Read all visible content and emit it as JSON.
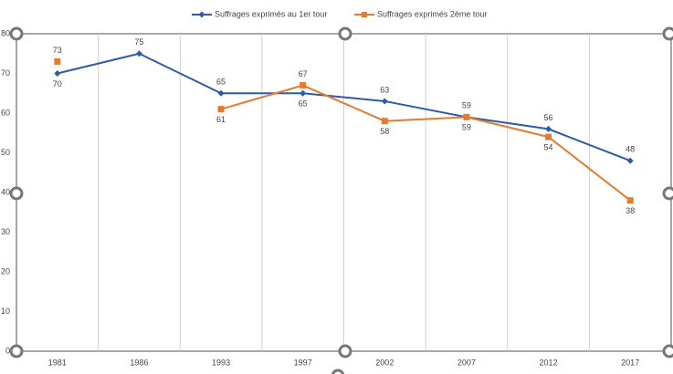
{
  "chart_data": {
    "type": "line",
    "categories": [
      "1981",
      "1986",
      "1993",
      "1997",
      "2002",
      "2007",
      "2012",
      "2017"
    ],
    "series": [
      {
        "name": "Suffrages exprimés au 1er tour",
        "color": "#2e5aa8",
        "values": [
          70,
          75,
          65,
          65,
          63,
          59,
          56,
          48
        ]
      },
      {
        "name": "Suffrages exprimés 2ème tour",
        "color": "#e67a2e",
        "values": [
          73,
          null,
          61,
          67,
          58,
          59,
          54,
          38
        ]
      }
    ],
    "ylim": [
      0,
      80
    ],
    "yticks": [
      0,
      10,
      20,
      30,
      40,
      50,
      60,
      70,
      80
    ],
    "grid": true,
    "legend": "top"
  }
}
